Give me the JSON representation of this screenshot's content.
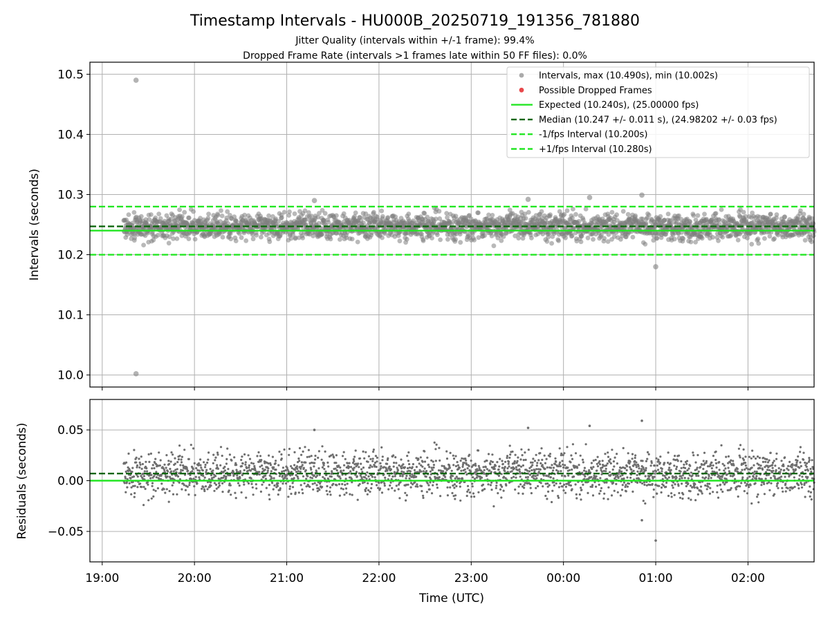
{
  "chart_data": {
    "type": "scatter",
    "title": "Timestamp Intervals - HU000B_20250719_191356_781880",
    "subtitles": [
      "Jitter Quality (intervals within +/-1 frame): 99.4%",
      "Dropped Frame Rate (intervals >1 frames late within 50 FF files): 0.0%"
    ],
    "xlabel": "Time (UTC)",
    "x_ticks": [
      "19:00",
      "20:00",
      "21:00",
      "22:00",
      "23:00",
      "00:00",
      "01:00",
      "02:00"
    ],
    "x_range": [
      "2025-07-19 18:52",
      "2025-07-20 02:43"
    ],
    "data_start": "2025-07-19 19:14",
    "data_end": "2025-07-20 02:43",
    "grid": true,
    "legend_position": "top-right",
    "colors": {
      "intervals": "#808080",
      "dropped": "#e8484b",
      "expected": "#22e622",
      "median": "#0d660d",
      "bounds": "#22e622",
      "residuals": "#6e6e6e"
    },
    "top_panel": {
      "ylabel": "Intervals (seconds)",
      "ylim": [
        9.98,
        10.52
      ],
      "y_ticks": [
        "10.0",
        "10.1",
        "10.2",
        "10.3",
        "10.4",
        "10.5"
      ],
      "max_interval": 10.49,
      "min_interval": 10.002,
      "outliers": [
        {
          "time": "2025-07-19 19:22",
          "value": 10.49
        },
        {
          "time": "2025-07-19 19:22",
          "value": 10.002
        },
        {
          "time": "2025-07-20 01:00",
          "value": 10.18
        },
        {
          "time": "2025-07-20 00:51",
          "value": 10.299
        },
        {
          "time": "2025-07-19 21:18",
          "value": 10.29
        },
        {
          "time": "2025-07-20 00:17",
          "value": 10.295
        },
        {
          "time": "2025-07-19 23:37",
          "value": 10.292
        }
      ],
      "expected": 10.24,
      "median": 10.247,
      "lower_bound": 10.2,
      "upper_bound": 10.28
    },
    "bottom_panel": {
      "ylabel": "Residuals (seconds)",
      "ylim": [
        -0.08,
        0.08
      ],
      "y_ticks": [
        "−0.05",
        "0.00",
        "0.05"
      ],
      "expected": 0.0,
      "median": 0.007,
      "outliers": [
        {
          "time": "2025-07-20 00:51",
          "value": 0.059
        },
        {
          "time": "2025-07-20 01:00",
          "value": -0.059
        },
        {
          "time": "2025-07-20 00:17",
          "value": 0.054
        },
        {
          "time": "2025-07-19 23:37",
          "value": 0.052
        },
        {
          "time": "2025-07-19 21:18",
          "value": 0.05
        },
        {
          "time": "2025-07-20 00:51",
          "value": -0.039
        }
      ]
    },
    "legend": [
      {
        "label": "Intervals, max (10.490s), min (10.002s)",
        "kind": "point",
        "color": "#aaaaaa"
      },
      {
        "label": "Possible Dropped Frames",
        "kind": "point",
        "color": "#e8484b"
      },
      {
        "label": "Expected (10.240s), (25.00000 fps)",
        "kind": "line",
        "color": "#22e622",
        "dash": false
      },
      {
        "label": "Median (10.247 +/- 0.011 s), (24.98202 +/- 0.03 fps)",
        "kind": "line",
        "color": "#0d660d",
        "dash": true
      },
      {
        "label": "-1/fps Interval (10.200s)",
        "kind": "line",
        "color": "#22e622",
        "dash": true
      },
      {
        "label": "+1/fps Interval (10.280s)",
        "kind": "line",
        "color": "#22e622",
        "dash": true
      }
    ]
  }
}
